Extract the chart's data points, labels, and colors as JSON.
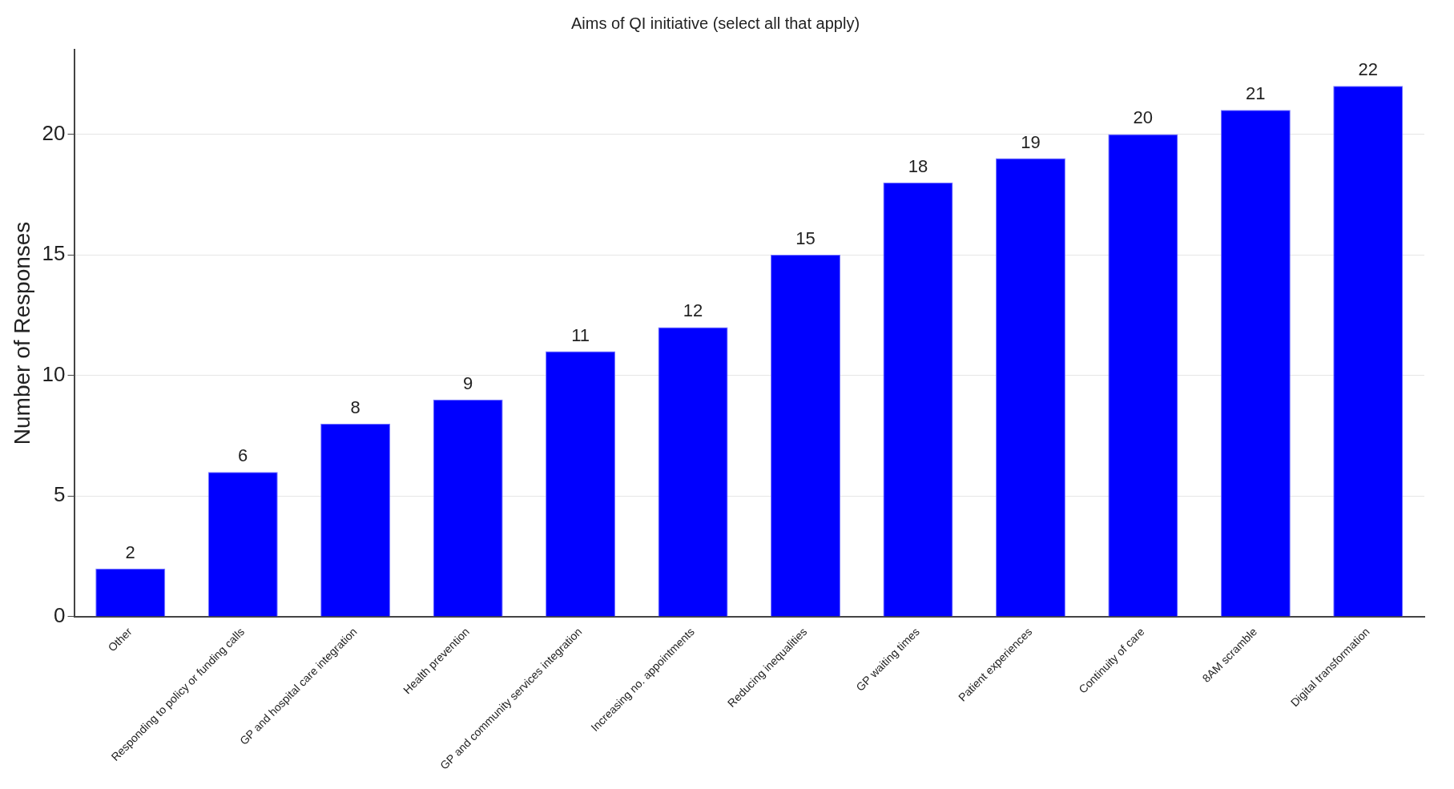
{
  "chart_data": {
    "type": "bar",
    "title": "Aims of QI initiative (select all that apply)",
    "ylabel": "Number of Responses",
    "categories": [
      "Other",
      "Responding to policy or funding calls",
      "GP and hospital care integration",
      "Health prevention",
      "GP and community services integration",
      "Increasing no. appointments",
      "Reducing inequalities",
      "GP waiting times",
      "Patient experiences",
      "Continuity of care",
      "8AM scramble",
      "Digital transformation"
    ],
    "values": [
      2,
      6,
      8,
      9,
      11,
      12,
      15,
      18,
      19,
      20,
      21,
      22
    ],
    "color": "#0000ff",
    "ylim": [
      0,
      23.5
    ],
    "yticks": [
      0,
      5,
      10,
      15,
      20
    ],
    "grid": "y",
    "data_labels": true,
    "legend": false
  }
}
